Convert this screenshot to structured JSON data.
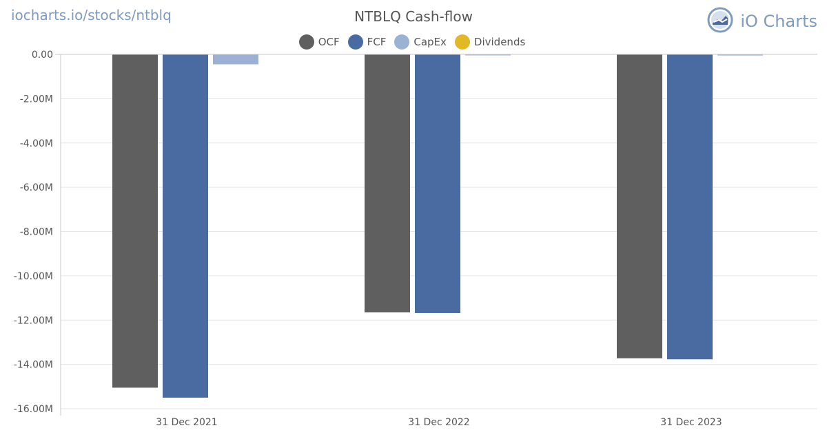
{
  "header": {
    "site_url": "iocharts.io/stocks/ntblq",
    "brand_name": "iO Charts",
    "brand_icon": "io-charts-logo-icon"
  },
  "colors": {
    "brand": "#7f9bbd",
    "gridline": "#e6e6e6",
    "axis": "#c8c8c8",
    "text": "#555555"
  },
  "chart_data": {
    "type": "bar",
    "title": "NTBLQ Cash-flow",
    "xlabel": "",
    "ylabel": "",
    "categories": [
      "31 Dec 2021",
      "31 Dec 2022",
      "31 Dec 2023"
    ],
    "series": [
      {
        "name": "OCF",
        "color": "#5f5f5f",
        "values": [
          -15.05,
          -11.65,
          -13.72
        ]
      },
      {
        "name": "FCF",
        "color": "#4a6ba1",
        "values": [
          -15.5,
          -11.68,
          -13.77
        ]
      },
      {
        "name": "CapEx",
        "color": "#9bb2d5",
        "values": [
          -0.45,
          -0.03,
          -0.05
        ]
      },
      {
        "name": "Dividends",
        "color": "#e3b827",
        "values": [
          0,
          0,
          0
        ]
      }
    ],
    "ylim": [
      -16,
      0
    ],
    "y_ticks": [
      0,
      -2,
      -4,
      -6,
      -8,
      -10,
      -12,
      -14,
      -16
    ],
    "y_tick_labels": [
      "0.00",
      "-2.00M",
      "-4.00M",
      "-6.00M",
      "-8.00M",
      "-10.00M",
      "-12.00M",
      "-14.00M",
      "-16.00M"
    ],
    "grid": true,
    "legend_position": "top-center"
  }
}
